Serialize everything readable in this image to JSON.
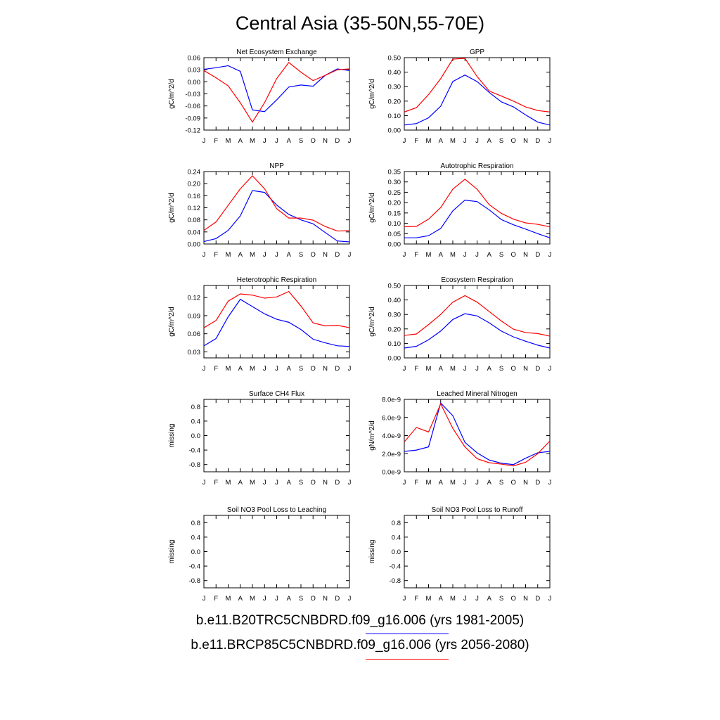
{
  "title": "Central Asia (35-50N,55-70E)",
  "legend": [
    {
      "label": "b.e11.B20TRC5CNBDRD.f09_g16.006 (yrs 1981-2005)",
      "color": "#0000ff"
    },
    {
      "label": "b.e11.BRCP85C5CNBDRD.f09_g16.006 (yrs 2056-2080)",
      "color": "#ff0000"
    }
  ],
  "series_colors": [
    "#0000ff",
    "#ff0000"
  ],
  "chart_data": [
    {
      "type": "line",
      "title": "Net Ecosystem Exchange",
      "ylabel": "gC/m^2/d",
      "categories": [
        "J",
        "F",
        "M",
        "A",
        "M",
        "J",
        "J",
        "A",
        "S",
        "O",
        "N",
        "D",
        "J"
      ],
      "ylim": [
        -0.12,
        0.06
      ],
      "yticks": [
        0.06,
        0.03,
        0.0,
        -0.03,
        -0.06,
        -0.09,
        -0.12
      ],
      "ytick_labels": [
        "0.06",
        "0.03",
        "0.00",
        "-0.03",
        "-0.06",
        "-0.09",
        "-0.12"
      ],
      "series": [
        {
          "values": [
            0.031,
            0.035,
            0.04,
            0.026,
            -0.07,
            -0.074,
            -0.045,
            -0.013,
            -0.008,
            -0.011,
            0.016,
            0.032,
            0.028
          ]
        },
        {
          "values": [
            0.028,
            0.01,
            -0.01,
            -0.052,
            -0.1,
            -0.052,
            0.008,
            0.048,
            0.024,
            0.003,
            0.016,
            0.03,
            0.032
          ]
        }
      ]
    },
    {
      "type": "line",
      "title": "GPP",
      "ylabel": "gC/m^2/d",
      "categories": [
        "J",
        "F",
        "M",
        "A",
        "M",
        "J",
        "J",
        "A",
        "S",
        "O",
        "N",
        "D",
        "J"
      ],
      "ylim": [
        0.0,
        0.5
      ],
      "yticks": [
        0.0,
        0.1,
        0.2,
        0.3,
        0.4,
        0.5
      ],
      "ytick_labels": [
        "0.00",
        "0.10",
        "0.20",
        "0.30",
        "0.40",
        "0.50"
      ],
      "series": [
        {
          "values": [
            0.035,
            0.045,
            0.085,
            0.165,
            0.335,
            0.38,
            0.335,
            0.26,
            0.195,
            0.16,
            0.105,
            0.055,
            0.035
          ]
        },
        {
          "values": [
            0.125,
            0.155,
            0.245,
            0.355,
            0.49,
            0.495,
            0.37,
            0.27,
            0.235,
            0.2,
            0.16,
            0.135,
            0.125
          ]
        }
      ]
    },
    {
      "type": "line",
      "title": "NPP",
      "ylabel": "gC/m^2/d",
      "categories": [
        "J",
        "F",
        "M",
        "A",
        "M",
        "J",
        "J",
        "A",
        "S",
        "O",
        "N",
        "D",
        "J"
      ],
      "ylim": [
        0.0,
        0.24
      ],
      "yticks": [
        0.0,
        0.04,
        0.08,
        0.12,
        0.16,
        0.2,
        0.24
      ],
      "ytick_labels": [
        "0.00",
        "0.04",
        "0.08",
        "0.12",
        "0.16",
        "0.20",
        "0.24"
      ],
      "series": [
        {
          "values": [
            0.008,
            0.018,
            0.045,
            0.093,
            0.177,
            0.171,
            0.129,
            0.098,
            0.08,
            0.067,
            0.038,
            0.01,
            0.007
          ]
        },
        {
          "values": [
            0.045,
            0.073,
            0.128,
            0.183,
            0.226,
            0.183,
            0.117,
            0.086,
            0.086,
            0.079,
            0.058,
            0.043,
            0.044
          ]
        }
      ]
    },
    {
      "type": "line",
      "title": "Autotrophic Respiration",
      "ylabel": "gC/m^2/d",
      "categories": [
        "J",
        "F",
        "M",
        "A",
        "M",
        "J",
        "J",
        "A",
        "S",
        "O",
        "N",
        "D",
        "J"
      ],
      "ylim": [
        0.0,
        0.35
      ],
      "yticks": [
        0.0,
        0.05,
        0.1,
        0.15,
        0.2,
        0.25,
        0.3,
        0.35
      ],
      "ytick_labels": [
        "0.00",
        "0.05",
        "0.10",
        "0.15",
        "0.20",
        "0.25",
        "0.30",
        "0.35"
      ],
      "series": [
        {
          "values": [
            0.03,
            0.03,
            0.04,
            0.075,
            0.16,
            0.212,
            0.205,
            0.165,
            0.118,
            0.093,
            0.072,
            0.05,
            0.03
          ]
        },
        {
          "values": [
            0.083,
            0.085,
            0.12,
            0.176,
            0.265,
            0.313,
            0.265,
            0.19,
            0.148,
            0.12,
            0.102,
            0.095,
            0.083
          ]
        }
      ]
    },
    {
      "type": "line",
      "title": "Heterotrophic Respiration",
      "ylabel": "gC/m^2/d",
      "categories": [
        "J",
        "F",
        "M",
        "A",
        "M",
        "J",
        "J",
        "A",
        "S",
        "O",
        "N",
        "D",
        "J"
      ],
      "ylim": [
        0.02,
        0.14
      ],
      "yticks": [
        0.03,
        0.06,
        0.09,
        0.12
      ],
      "ytick_labels": [
        "0.03",
        "0.06",
        "0.09",
        "0.12"
      ],
      "series": [
        {
          "values": [
            0.04,
            0.052,
            0.088,
            0.117,
            0.105,
            0.093,
            0.084,
            0.079,
            0.067,
            0.051,
            0.045,
            0.04,
            0.039
          ]
        },
        {
          "values": [
            0.07,
            0.082,
            0.114,
            0.126,
            0.124,
            0.119,
            0.121,
            0.13,
            0.106,
            0.078,
            0.073,
            0.074,
            0.07
          ]
        }
      ]
    },
    {
      "type": "line",
      "title": "Ecosystem Respiration",
      "ylabel": "gC/m^2/d",
      "categories": [
        "J",
        "F",
        "M",
        "A",
        "M",
        "J",
        "J",
        "A",
        "S",
        "O",
        "N",
        "D",
        "J"
      ],
      "ylim": [
        0.0,
        0.5
      ],
      "yticks": [
        0.0,
        0.1,
        0.2,
        0.3,
        0.4,
        0.5
      ],
      "ytick_labels": [
        "0.00",
        "0.10",
        "0.20",
        "0.30",
        "0.40",
        "0.50"
      ],
      "series": [
        {
          "values": [
            0.068,
            0.08,
            0.125,
            0.185,
            0.265,
            0.305,
            0.29,
            0.242,
            0.185,
            0.145,
            0.115,
            0.088,
            0.068
          ]
        },
        {
          "values": [
            0.155,
            0.165,
            0.23,
            0.3,
            0.385,
            0.43,
            0.385,
            0.32,
            0.255,
            0.198,
            0.175,
            0.168,
            0.15
          ]
        }
      ]
    },
    {
      "type": "line",
      "title": "Surface CH4 Flux",
      "ylabel": "missing",
      "categories": [
        "J",
        "F",
        "M",
        "A",
        "M",
        "J",
        "J",
        "A",
        "S",
        "O",
        "N",
        "D",
        "J"
      ],
      "ylim": [
        -1.0,
        1.0
      ],
      "yticks": [
        0.8,
        0.4,
        0.0,
        -0.4,
        -0.8
      ],
      "ytick_labels": [
        "0.8",
        "0.4",
        "0.0",
        "-0.4",
        "-0.8"
      ],
      "series": []
    },
    {
      "type": "line",
      "title": "Leached Mineral Nitrogen",
      "ylabel": "gN/m^2/d",
      "categories": [
        "J",
        "F",
        "M",
        "A",
        "M",
        "J",
        "J",
        "A",
        "S",
        "O",
        "N",
        "D",
        "J"
      ],
      "ylim": [
        0.0,
        8e-09
      ],
      "yticks": [
        0.0,
        2e-09,
        4e-09,
        6e-09,
        8e-09
      ],
      "ytick_labels": [
        "0.0e-9",
        "2.0e-9",
        "4.0e-9",
        "6.0e-9",
        "8.0e-9"
      ],
      "series": [
        {
          "values": [
            2.25e-09,
            2.4e-09,
            2.75e-09,
            7.6e-09,
            6.2e-09,
            3.25e-09,
            2.1e-09,
            1.3e-09,
            9.5e-10,
            8e-10,
            1.5e-09,
            2.1e-09,
            2.25e-09
          ]
        },
        {
          "values": [
            3.3e-09,
            4.9e-09,
            4.4e-09,
            7.5e-09,
            4.8e-09,
            2.75e-09,
            1.45e-09,
            1e-09,
            8.5e-10,
            6.5e-10,
            1.05e-09,
            2e-09,
            3.4e-09
          ]
        }
      ]
    },
    {
      "type": "line",
      "title": "Soil NO3 Pool Loss to Leaching",
      "ylabel": "missing",
      "categories": [
        "J",
        "F",
        "M",
        "A",
        "M",
        "J",
        "J",
        "A",
        "S",
        "O",
        "N",
        "D",
        "J"
      ],
      "ylim": [
        -1.0,
        1.0
      ],
      "yticks": [
        0.8,
        0.4,
        0.0,
        -0.4,
        -0.8
      ],
      "ytick_labels": [
        "0.8",
        "0.4",
        "0.0",
        "-0.4",
        "-0.8"
      ],
      "series": []
    },
    {
      "type": "line",
      "title": "Soil NO3 Pool Loss to Runoff",
      "ylabel": "missing",
      "categories": [
        "J",
        "F",
        "M",
        "A",
        "M",
        "J",
        "J",
        "A",
        "S",
        "O",
        "N",
        "D",
        "J"
      ],
      "ylim": [
        -1.0,
        1.0
      ],
      "yticks": [
        0.8,
        0.4,
        0.0,
        -0.4,
        -0.8
      ],
      "ytick_labels": [
        "0.8",
        "0.4",
        "0.0",
        "-0.4",
        "-0.8"
      ],
      "series": []
    }
  ]
}
